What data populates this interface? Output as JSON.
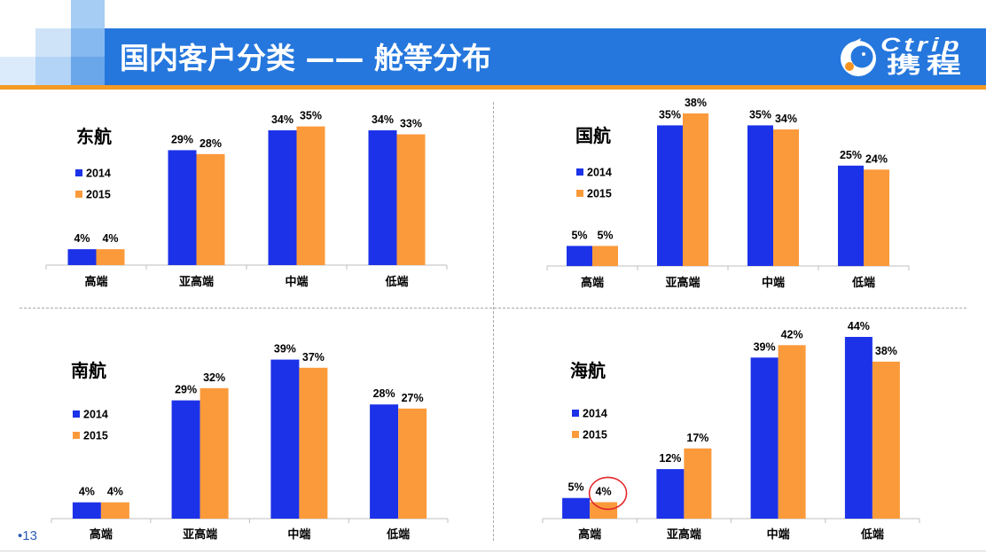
{
  "header": {
    "title": "国内客户分类 —— 舱等分布",
    "logo": {
      "latin": "Ctrip",
      "chinese": "携程"
    }
  },
  "footer": {
    "page_number": "•13"
  },
  "colors": {
    "header_bar": "#2577dd",
    "accent_line": "#f59a23",
    "series": [
      "#1c32e8",
      "#fb9a3b"
    ],
    "annotation": "#e3262b",
    "logo_accent": "#f7941d"
  },
  "annotation": {
    "chart_index": 3,
    "series_index": 1,
    "category_index": 0
  },
  "chart_data": [
    {
      "type": "bar",
      "title": "东航",
      "categories": [
        "高端",
        "亚高端",
        "中端",
        "低端"
      ],
      "unit": "%",
      "ylim": [
        0,
        50
      ],
      "series": [
        {
          "name": "2014",
          "values": [
            4,
            29,
            34,
            34
          ]
        },
        {
          "name": "2015",
          "values": [
            4,
            28,
            35,
            33
          ]
        }
      ]
    },
    {
      "type": "bar",
      "title": "国航",
      "categories": [
        "高端",
        "亚高端",
        "中端",
        "低端"
      ],
      "unit": "%",
      "ylim": [
        0,
        50
      ],
      "series": [
        {
          "name": "2014",
          "values": [
            5,
            35,
            35,
            25
          ]
        },
        {
          "name": "2015",
          "values": [
            5,
            38,
            34,
            24
          ]
        }
      ]
    },
    {
      "type": "bar",
      "title": "南航",
      "categories": [
        "高端",
        "亚高端",
        "中端",
        "低端"
      ],
      "unit": "%",
      "ylim": [
        0,
        50
      ],
      "series": [
        {
          "name": "2014",
          "values": [
            4,
            29,
            39,
            28
          ]
        },
        {
          "name": "2015",
          "values": [
            4,
            32,
            37,
            27
          ]
        }
      ]
    },
    {
      "type": "bar",
      "title": "海航",
      "categories": [
        "高端",
        "亚高端",
        "中端",
        "低端"
      ],
      "unit": "%",
      "ylim": [
        0,
        50
      ],
      "series": [
        {
          "name": "2014",
          "values": [
            5,
            12,
            39,
            44
          ]
        },
        {
          "name": "2015",
          "values": [
            4,
            17,
            42,
            38
          ]
        }
      ]
    }
  ]
}
